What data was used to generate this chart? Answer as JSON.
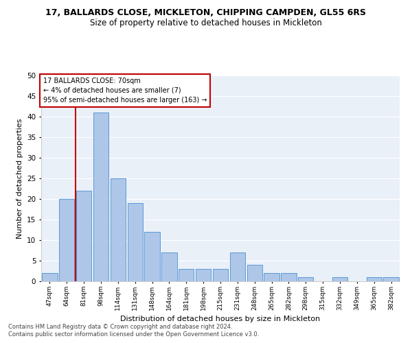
{
  "title1": "17, BALLARDS CLOSE, MICKLETON, CHIPPING CAMPDEN, GL55 6RS",
  "title2": "Size of property relative to detached houses in Mickleton",
  "xlabel": "Distribution of detached houses by size in Mickleton",
  "ylabel": "Number of detached properties",
  "footer1": "Contains HM Land Registry data © Crown copyright and database right 2024.",
  "footer2": "Contains public sector information licensed under the Open Government Licence v3.0.",
  "annotation_title": "17 BALLARDS CLOSE: 70sqm",
  "annotation_line1": "← 4% of detached houses are smaller (7)",
  "annotation_line2": "95% of semi-detached houses are larger (163) →",
  "bar_categories": [
    "47sqm",
    "64sqm",
    "81sqm",
    "98sqm",
    "114sqm",
    "131sqm",
    "148sqm",
    "164sqm",
    "181sqm",
    "198sqm",
    "215sqm",
    "231sqm",
    "248sqm",
    "265sqm",
    "282sqm",
    "298sqm",
    "315sqm",
    "332sqm",
    "349sqm",
    "365sqm",
    "382sqm"
  ],
  "bar_values": [
    2,
    20,
    22,
    41,
    25,
    19,
    12,
    7,
    3,
    3,
    3,
    7,
    4,
    2,
    2,
    1,
    0,
    1,
    0,
    1,
    1
  ],
  "bar_color": "#aec6e8",
  "bar_edge_color": "#5b9bd5",
  "vline_x": 1.5,
  "vline_color": "#c00000",
  "annotation_box_color": "#c00000",
  "ylim": [
    0,
    50
  ],
  "yticks": [
    0,
    5,
    10,
    15,
    20,
    25,
    30,
    35,
    40,
    45,
    50
  ],
  "bg_color": "#eaf0f8",
  "grid_color": "#ffffff"
}
